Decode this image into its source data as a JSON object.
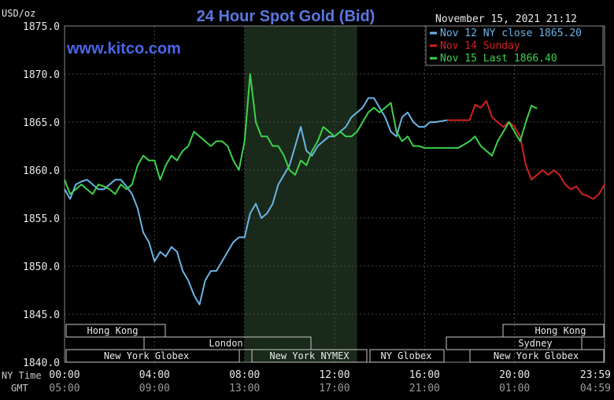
{
  "header": {
    "unit": "USD/oz",
    "title": "24 Hour Spot Gold (Bid)",
    "watermark": "www.kitco.com",
    "timestamp": "November 15, 2021 21:12"
  },
  "legend": [
    {
      "text": "Nov 12 NY close 1865.20",
      "color": "#6ab4e6"
    },
    {
      "text": "Nov 14 Sunday",
      "color": "#d42020"
    },
    {
      "text": "Nov 15 Last 1866.40",
      "color": "#3cd24a"
    }
  ],
  "axes": {
    "y_ticks": [
      "1875.0",
      "1870.0",
      "1865.0",
      "1860.0",
      "1855.0",
      "1850.0",
      "1845.0",
      "1840.0"
    ],
    "x_ticks_ny": [
      "00:00",
      "04:00",
      "08:00",
      "12:00",
      "16:00",
      "20:00",
      "23:59"
    ],
    "x_ticks_gmt": [
      "05:00",
      "09:00",
      "13:00",
      "17:00",
      "21:00",
      "01:00",
      "04:59"
    ],
    "ny_time_label": "NY Time",
    "gmt_label": "GMT"
  },
  "sessions": {
    "hong_kong_left": "Hong Kong",
    "london": "London",
    "new_york_globex_left": "New York Globex",
    "new_york_nymex": "New York NYMEX",
    "ny_globex": "NY Globex",
    "hong_kong_right": "Hong Kong",
    "sydney": "Sydney",
    "new_york_globex_right": "New York Globex"
  },
  "chart_data": {
    "type": "line",
    "title": "24 Hour Spot Gold (Bid)",
    "ylabel": "USD/oz",
    "xlabel": "NY Time",
    "xlim": [
      0,
      24
    ],
    "ylim": [
      1840,
      1875
    ],
    "grid": true,
    "shaded_region": [
      8,
      13
    ],
    "legend_position": "top-right",
    "series": [
      {
        "name": "Nov 12 NY close 1865.20",
        "color": "#6ab4e6",
        "x": [
          0,
          0.25,
          0.5,
          0.75,
          1,
          1.25,
          1.5,
          1.75,
          2,
          2.25,
          2.5,
          2.75,
          3,
          3.25,
          3.5,
          3.75,
          4,
          4.25,
          4.5,
          4.75,
          5,
          5.25,
          5.5,
          5.75,
          6,
          6.25,
          6.5,
          6.75,
          7,
          7.25,
          7.5,
          7.75,
          8,
          8.25,
          8.5,
          8.75,
          9,
          9.25,
          9.5,
          9.75,
          10,
          10.25,
          10.5,
          10.75,
          11,
          11.25,
          11.5,
          11.75,
          12,
          12.25,
          12.5,
          12.75,
          13,
          13.25,
          13.5,
          13.75,
          14,
          14.25,
          14.5,
          14.75,
          15,
          15.25,
          15.5,
          15.75,
          16,
          16.25,
          16.5,
          16.75,
          17
        ],
        "values": [
          1858.0,
          1857.0,
          1858.5,
          1858.8,
          1859.0,
          1858.5,
          1858.0,
          1858.0,
          1858.5,
          1859.0,
          1859.0,
          1858.3,
          1857.5,
          1856.0,
          1853.5,
          1852.5,
          1850.5,
          1851.5,
          1851.0,
          1852.0,
          1851.5,
          1849.5,
          1848.5,
          1847.0,
          1846.0,
          1848.5,
          1849.5,
          1849.5,
          1850.5,
          1851.5,
          1852.5,
          1853.0,
          1853.0,
          1855.5,
          1856.5,
          1855.0,
          1855.5,
          1856.5,
          1858.5,
          1859.5,
          1860.5,
          1862.5,
          1864.5,
          1862.0,
          1861.5,
          1862.5,
          1863.0,
          1863.5,
          1863.5,
          1864.0,
          1864.5,
          1865.5,
          1866.0,
          1866.5,
          1867.5,
          1867.5,
          1866.5,
          1865.5,
          1864.0,
          1863.5,
          1865.5,
          1866.0,
          1865.0,
          1864.5,
          1864.5,
          1865.0,
          1865.0,
          1865.1,
          1865.2
        ]
      },
      {
        "name": "Nov 14 Sunday",
        "color": "#d42020",
        "x": [
          17,
          17.5,
          18,
          18.25,
          18.5,
          18.75,
          19,
          19.25,
          19.5,
          19.75,
          20,
          20.25,
          20.5,
          20.75,
          21,
          21.25,
          21.5,
          21.75,
          22,
          22.25,
          22.5,
          22.75,
          23,
          23.25,
          23.5,
          23.75,
          24
        ],
        "values": [
          1865.2,
          1865.2,
          1865.2,
          1866.8,
          1866.5,
          1867.2,
          1865.5,
          1865.0,
          1864.5,
          1865.0,
          1864.5,
          1863.5,
          1860.5,
          1859.0,
          1859.5,
          1860.0,
          1859.5,
          1860.0,
          1859.5,
          1858.5,
          1858.0,
          1858.3,
          1857.5,
          1857.3,
          1857.0,
          1857.5,
          1858.5
        ]
      },
      {
        "name": "Nov 15 Last 1866.40",
        "color": "#3cd24a",
        "x": [
          0,
          0.25,
          0.5,
          0.75,
          1,
          1.25,
          1.5,
          1.75,
          2,
          2.25,
          2.5,
          2.75,
          3,
          3.25,
          3.5,
          3.75,
          4,
          4.25,
          4.5,
          4.75,
          5,
          5.25,
          5.5,
          5.75,
          6,
          6.25,
          6.5,
          6.75,
          7,
          7.25,
          7.5,
          7.75,
          8,
          8.25,
          8.5,
          8.75,
          9,
          9.25,
          9.5,
          9.75,
          10,
          10.25,
          10.5,
          10.75,
          11,
          11.25,
          11.5,
          11.75,
          12,
          12.25,
          12.5,
          12.75,
          13,
          13.25,
          13.5,
          13.75,
          14,
          14.25,
          14.5,
          14.75,
          15,
          15.25,
          15.5,
          15.75,
          16,
          16.25,
          16.5,
          16.75,
          17,
          17.5,
          18,
          18.25,
          18.5,
          18.75,
          19,
          19.25,
          19.5,
          19.75,
          20,
          20.25,
          20.5,
          20.75,
          21
        ],
        "values": [
          1859.0,
          1857.5,
          1858.0,
          1858.5,
          1858.0,
          1857.5,
          1858.5,
          1858.3,
          1858.0,
          1857.5,
          1858.5,
          1858.0,
          1858.5,
          1860.5,
          1861.5,
          1861.0,
          1861.0,
          1859.0,
          1860.5,
          1861.5,
          1861.0,
          1862.0,
          1862.5,
          1864.0,
          1863.5,
          1863.0,
          1862.5,
          1863.0,
          1863.0,
          1862.5,
          1861.0,
          1860.0,
          1863.0,
          1870.0,
          1865.0,
          1863.5,
          1863.5,
          1862.5,
          1862.5,
          1861.5,
          1860.0,
          1859.5,
          1861.0,
          1860.5,
          1862.0,
          1863.0,
          1864.5,
          1864.0,
          1863.5,
          1864.0,
          1863.5,
          1863.5,
          1864.0,
          1865.0,
          1866.0,
          1866.5,
          1866.0,
          1866.5,
          1867.0,
          1864.0,
          1863.0,
          1863.5,
          1862.5,
          1862.5,
          1862.3,
          1862.3,
          1862.3,
          1862.3,
          1862.3,
          1862.3,
          1863.0,
          1863.5,
          1862.5,
          1862.0,
          1861.5,
          1863.0,
          1864.0,
          1865.0,
          1864.0,
          1863.0,
          1865.0,
          1866.7,
          1866.4
        ]
      }
    ]
  }
}
